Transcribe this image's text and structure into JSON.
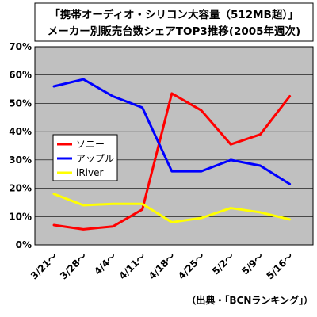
{
  "chart_data": {
    "type": "line",
    "title": [
      "「携帯オーディオ・シリコン大容量（512MB超）」",
      "メーカー別販売台数シェアTOP3推移(2005年週次)"
    ],
    "categories": [
      "3/21～",
      "3/28～",
      "4/4～",
      "4/11～",
      "4/18～",
      "4/25～",
      "5/2～",
      "5/9～",
      "5/16～"
    ],
    "ylim": [
      0,
      70
    ],
    "yticks": [
      "0%",
      "10%",
      "20%",
      "30%",
      "40%",
      "50%",
      "60%",
      "70%"
    ],
    "ytick_values": [
      0,
      10,
      20,
      30,
      40,
      50,
      60,
      70
    ],
    "grid": true,
    "legend_position": "left-middle",
    "series": [
      {
        "name": "ソニー",
        "color": "#ff0000",
        "values": [
          7,
          5.5,
          6.5,
          12.5,
          53.5,
          47.5,
          35.5,
          39,
          52.5
        ]
      },
      {
        "name": "アップル",
        "color": "#0000ff",
        "values": [
          56,
          58.5,
          52.5,
          48.5,
          26,
          26,
          30,
          28,
          21.5
        ]
      },
      {
        "name": "iRiver",
        "color": "#ffff00",
        "values": [
          18,
          14,
          14.5,
          14.5,
          8,
          9.5,
          13,
          11.5,
          9
        ]
      }
    ],
    "source": "（出典・「BCNランキング」）"
  }
}
